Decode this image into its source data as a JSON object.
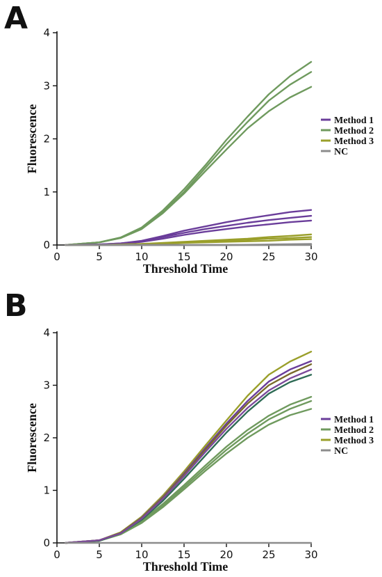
{
  "panels": [
    {
      "letter": "A"
    },
    {
      "letter": "B"
    }
  ],
  "chart_data": [
    {
      "panel": "A",
      "type": "line",
      "xlabel": "Threshold Time",
      "ylabel": "Fluorescence",
      "xlim": [
        0,
        30
      ],
      "ylim": [
        0,
        4
      ],
      "xticks": [
        0,
        5,
        10,
        15,
        20,
        25,
        30
      ],
      "yticks": [
        0,
        1,
        2,
        3,
        4
      ],
      "grid": false,
      "legend": {
        "position": "right",
        "entries": [
          {
            "label": "Method 1",
            "color": "#6a3d9a"
          },
          {
            "label": "Method 2",
            "color": "#6f9a5e"
          },
          {
            "label": "Method 3",
            "color": "#9a9f2a"
          },
          {
            "label": "NC",
            "color": "#8c8c8c"
          }
        ]
      },
      "series": [
        {
          "group": "Method 2",
          "color": "#6f9a5e",
          "points": [
            [
              1,
              0
            ],
            [
              5,
              0.05
            ],
            [
              7.5,
              0.14
            ],
            [
              10,
              0.33
            ],
            [
              12.5,
              0.65
            ],
            [
              15,
              1.05
            ],
            [
              17.5,
              1.5
            ],
            [
              20,
              1.98
            ],
            [
              22.5,
              2.42
            ],
            [
              25,
              2.84
            ],
            [
              27.5,
              3.18
            ],
            [
              30,
              3.45
            ]
          ]
        },
        {
          "group": "Method 2",
          "color": "#6f9a5e",
          "points": [
            [
              1,
              0
            ],
            [
              5,
              0.05
            ],
            [
              7.5,
              0.14
            ],
            [
              10,
              0.32
            ],
            [
              12.5,
              0.62
            ],
            [
              15,
              1.0
            ],
            [
              17.5,
              1.45
            ],
            [
              20,
              1.9
            ],
            [
              22.5,
              2.32
            ],
            [
              25,
              2.72
            ],
            [
              27.5,
              3.02
            ],
            [
              30,
              3.26
            ]
          ]
        },
        {
          "group": "Method 2",
          "color": "#6f9a5e",
          "points": [
            [
              1,
              0
            ],
            [
              5,
              0.05
            ],
            [
              7.5,
              0.13
            ],
            [
              10,
              0.3
            ],
            [
              12.5,
              0.6
            ],
            [
              15,
              0.97
            ],
            [
              17.5,
              1.39
            ],
            [
              20,
              1.8
            ],
            [
              22.5,
              2.2
            ],
            [
              25,
              2.52
            ],
            [
              27.5,
              2.78
            ],
            [
              30,
              2.98
            ]
          ]
        },
        {
          "group": "Method 1",
          "color": "#6a3d9a",
          "points": [
            [
              1,
              0
            ],
            [
              5,
              0.01
            ],
            [
              7.5,
              0.03
            ],
            [
              10,
              0.08
            ],
            [
              12.5,
              0.17
            ],
            [
              15,
              0.27
            ],
            [
              17.5,
              0.35
            ],
            [
              20,
              0.43
            ],
            [
              22.5,
              0.5
            ],
            [
              25,
              0.56
            ],
            [
              27.5,
              0.62
            ],
            [
              30,
              0.66
            ]
          ]
        },
        {
          "group": "Method 1",
          "color": "#6a3d9a",
          "points": [
            [
              1,
              0
            ],
            [
              5,
              0.01
            ],
            [
              7.5,
              0.03
            ],
            [
              10,
              0.07
            ],
            [
              12.5,
              0.15
            ],
            [
              15,
              0.23
            ],
            [
              17.5,
              0.3
            ],
            [
              20,
              0.36
            ],
            [
              22.5,
              0.42
            ],
            [
              25,
              0.47
            ],
            [
              27.5,
              0.51
            ],
            [
              30,
              0.55
            ]
          ]
        },
        {
          "group": "Method 1",
          "color": "#6a3d9a",
          "points": [
            [
              1,
              0
            ],
            [
              5,
              0.01
            ],
            [
              7.5,
              0.02
            ],
            [
              10,
              0.06
            ],
            [
              12.5,
              0.12
            ],
            [
              15,
              0.19
            ],
            [
              17.5,
              0.25
            ],
            [
              20,
              0.3
            ],
            [
              22.5,
              0.35
            ],
            [
              25,
              0.39
            ],
            [
              27.5,
              0.43
            ],
            [
              30,
              0.46
            ]
          ]
        },
        {
          "group": "Method 3",
          "color": "#9a9f2a",
          "points": [
            [
              1,
              0
            ],
            [
              5,
              0
            ],
            [
              7.5,
              0.01
            ],
            [
              10,
              0.02
            ],
            [
              12.5,
              0.04
            ],
            [
              15,
              0.06
            ],
            [
              17.5,
              0.08
            ],
            [
              20,
              0.1
            ],
            [
              22.5,
              0.12
            ],
            [
              25,
              0.15
            ],
            [
              27.5,
              0.17
            ],
            [
              30,
              0.2
            ]
          ]
        },
        {
          "group": "Method 3",
          "color": "#9a9f2a",
          "points": [
            [
              1,
              0
            ],
            [
              5,
              0
            ],
            [
              7.5,
              0.01
            ],
            [
              10,
              0.02
            ],
            [
              12.5,
              0.03
            ],
            [
              15,
              0.05
            ],
            [
              17.5,
              0.07
            ],
            [
              20,
              0.08
            ],
            [
              22.5,
              0.1
            ],
            [
              25,
              0.12
            ],
            [
              27.5,
              0.13
            ],
            [
              30,
              0.15
            ]
          ]
        },
        {
          "group": "Method 3",
          "color": "#9a9f2a",
          "points": [
            [
              1,
              0
            ],
            [
              5,
              0
            ],
            [
              7.5,
              0
            ],
            [
              10,
              0.01
            ],
            [
              12.5,
              0.02
            ],
            [
              15,
              0.04
            ],
            [
              17.5,
              0.05
            ],
            [
              20,
              0.06
            ],
            [
              22.5,
              0.07
            ],
            [
              25,
              0.08
            ],
            [
              27.5,
              0.1
            ],
            [
              30,
              0.11
            ]
          ]
        },
        {
          "group": "NC",
          "color": "#8c8c8c",
          "points": [
            [
              1,
              0
            ],
            [
              5,
              0
            ],
            [
              10,
              0
            ],
            [
              15,
              0
            ],
            [
              20,
              0
            ],
            [
              25,
              0.01
            ],
            [
              30,
              0.02
            ]
          ]
        },
        {
          "group": "NC",
          "color": "#8c8c8c",
          "points": [
            [
              1,
              0
            ],
            [
              5,
              0
            ],
            [
              10,
              0
            ],
            [
              15,
              0
            ],
            [
              20,
              0
            ],
            [
              25,
              0
            ],
            [
              30,
              0.01
            ]
          ]
        },
        {
          "group": "NC",
          "color": "#8c8c8c",
          "points": [
            [
              1,
              0
            ],
            [
              5,
              0
            ],
            [
              10,
              0
            ],
            [
              15,
              0
            ],
            [
              20,
              0
            ],
            [
              25,
              0
            ],
            [
              30,
              0
            ]
          ]
        }
      ]
    },
    {
      "panel": "B",
      "type": "line",
      "xlabel": "Threshold Time",
      "ylabel": "Fluorescence",
      "xlim": [
        0,
        30
      ],
      "ylim": [
        0,
        4
      ],
      "xticks": [
        0,
        5,
        10,
        15,
        20,
        25,
        30
      ],
      "yticks": [
        0,
        1,
        2,
        3,
        4
      ],
      "grid": false,
      "legend": {
        "position": "right",
        "entries": [
          {
            "label": "Method 1",
            "color": "#6a3d9a"
          },
          {
            "label": "Method 2",
            "color": "#6f9a5e"
          },
          {
            "label": "Method 3",
            "color": "#9a9f2a"
          },
          {
            "label": "NC",
            "color": "#8c8c8c"
          }
        ]
      },
      "series": [
        {
          "group": "Method 2",
          "color": "#6f9a5e",
          "points": [
            [
              1,
              0
            ],
            [
              5,
              0.04
            ],
            [
              7.5,
              0.18
            ],
            [
              10,
              0.42
            ],
            [
              12.5,
              0.74
            ],
            [
              15,
              1.1
            ],
            [
              17.5,
              1.47
            ],
            [
              20,
              1.83
            ],
            [
              22.5,
              2.15
            ],
            [
              25,
              2.42
            ],
            [
              27.5,
              2.63
            ],
            [
              30,
              2.78
            ]
          ]
        },
        {
          "group": "Method 2",
          "color": "#6f9a5e",
          "points": [
            [
              1,
              0
            ],
            [
              5,
              0.04
            ],
            [
              7.5,
              0.17
            ],
            [
              10,
              0.4
            ],
            [
              12.5,
              0.71
            ],
            [
              15,
              1.06
            ],
            [
              17.5,
              1.42
            ],
            [
              20,
              1.77
            ],
            [
              22.5,
              2.08
            ],
            [
              25,
              2.35
            ],
            [
              27.5,
              2.55
            ],
            [
              30,
              2.7
            ]
          ]
        },
        {
          "group": "Method 2",
          "color": "#6f9a5e",
          "points": [
            [
              1,
              0
            ],
            [
              5,
              0.04
            ],
            [
              7.5,
              0.16
            ],
            [
              10,
              0.38
            ],
            [
              12.5,
              0.68
            ],
            [
              15,
              1.02
            ],
            [
              17.5,
              1.37
            ],
            [
              20,
              1.7
            ],
            [
              22.5,
              2.0
            ],
            [
              25,
              2.25
            ],
            [
              27.5,
              2.43
            ],
            [
              30,
              2.55
            ]
          ]
        },
        {
          "group": "Method 2",
          "color": "#2e6b55",
          "points": [
            [
              1,
              0
            ],
            [
              5,
              0.04
            ],
            [
              7.5,
              0.18
            ],
            [
              10,
              0.44
            ],
            [
              12.5,
              0.8
            ],
            [
              15,
              1.22
            ],
            [
              17.5,
              1.66
            ],
            [
              20,
              2.1
            ],
            [
              22.5,
              2.5
            ],
            [
              25,
              2.84
            ],
            [
              27.5,
              3.06
            ],
            [
              30,
              3.2
            ]
          ]
        },
        {
          "group": "Method 3",
          "color": "#9a9f2a",
          "points": [
            [
              1,
              0
            ],
            [
              5,
              0.05
            ],
            [
              7.5,
              0.2
            ],
            [
              10,
              0.5
            ],
            [
              12.5,
              0.9
            ],
            [
              15,
              1.36
            ],
            [
              17.5,
              1.85
            ],
            [
              20,
              2.33
            ],
            [
              22.5,
              2.8
            ],
            [
              25,
              3.2
            ],
            [
              27.5,
              3.45
            ],
            [
              30,
              3.64
            ]
          ]
        },
        {
          "group": "Method 1",
          "color": "#6a3d9a",
          "points": [
            [
              1,
              0
            ],
            [
              5,
              0.05
            ],
            [
              7.5,
              0.19
            ],
            [
              10,
              0.48
            ],
            [
              12.5,
              0.87
            ],
            [
              15,
              1.32
            ],
            [
              17.5,
              1.8
            ],
            [
              20,
              2.27
            ],
            [
              22.5,
              2.7
            ],
            [
              25,
              3.07
            ],
            [
              27.5,
              3.3
            ],
            [
              30,
              3.46
            ]
          ]
        },
        {
          "group": "Method 3",
          "color": "#7a6a2a",
          "points": [
            [
              1,
              0
            ],
            [
              5,
              0.05
            ],
            [
              7.5,
              0.19
            ],
            [
              10,
              0.47
            ],
            [
              12.5,
              0.86
            ],
            [
              15,
              1.3
            ],
            [
              17.5,
              1.77
            ],
            [
              20,
              2.23
            ],
            [
              22.5,
              2.65
            ],
            [
              25,
              3.0
            ],
            [
              27.5,
              3.22
            ],
            [
              30,
              3.4
            ]
          ]
        },
        {
          "group": "Method 1",
          "color": "#7b4a9a",
          "points": [
            [
              1,
              0
            ],
            [
              5,
              0.05
            ],
            [
              7.5,
              0.18
            ],
            [
              10,
              0.46
            ],
            [
              12.5,
              0.84
            ],
            [
              15,
              1.27
            ],
            [
              17.5,
              1.73
            ],
            [
              20,
              2.17
            ],
            [
              22.5,
              2.57
            ],
            [
              25,
              2.9
            ],
            [
              27.5,
              3.13
            ],
            [
              30,
              3.3
            ]
          ]
        },
        {
          "group": "NC",
          "color": "#8c8c8c",
          "points": [
            [
              1,
              0
            ],
            [
              5,
              0
            ],
            [
              10,
              0
            ],
            [
              15,
              0
            ],
            [
              20,
              0
            ],
            [
              25,
              0
            ],
            [
              30,
              0
            ]
          ]
        }
      ]
    }
  ]
}
